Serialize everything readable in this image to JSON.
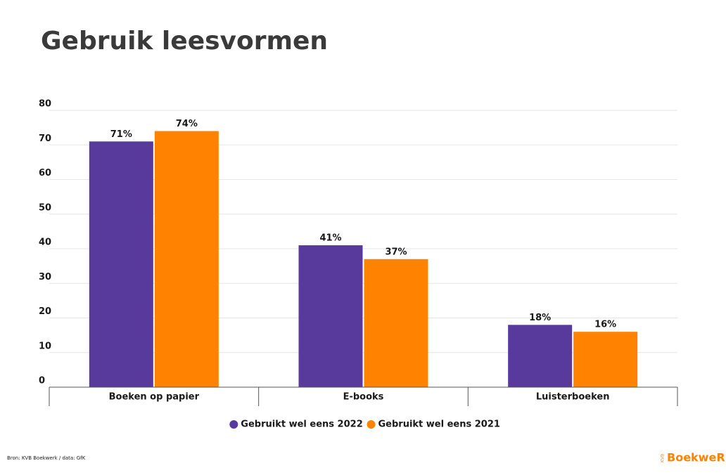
{
  "chart_data": {
    "type": "bar",
    "title": "Gebruik leesvormen",
    "categories": [
      "Boeken op papier",
      "E-books",
      "Luisterboeken"
    ],
    "series": [
      {
        "name": "Gebruikt wel eens 2022",
        "color": "#573a9b",
        "values": [
          71,
          41,
          18
        ],
        "value_labels": [
          "71%",
          "41%",
          "18%"
        ]
      },
      {
        "name": "Gebruikt wel eens 2021",
        "color": "#ff8200",
        "values": [
          74,
          37,
          16
        ],
        "value_labels": [
          "74%",
          "37%",
          "16%"
        ]
      }
    ],
    "ylim": [
      0,
      80
    ],
    "yticks": [
      0,
      10,
      20,
      30,
      40,
      50,
      60,
      70,
      80
    ],
    "grid": true,
    "legend": "bottom",
    "source": "Bron: KVB Boekwerk / data: GfK",
    "logo_prefix": "KVB",
    "logo": "BoekweRk"
  }
}
